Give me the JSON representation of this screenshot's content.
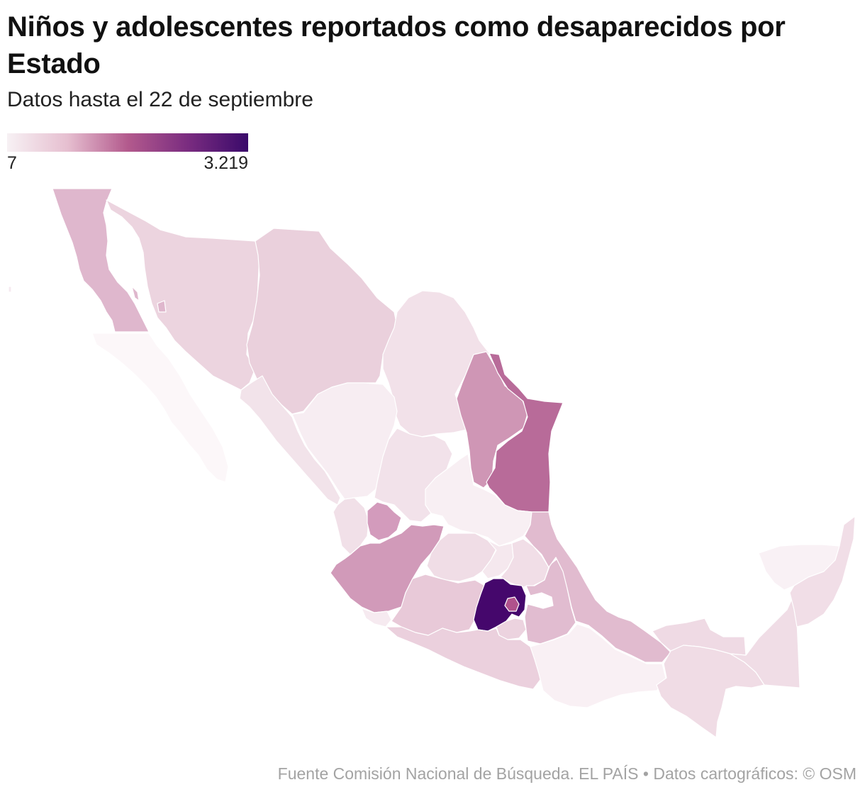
{
  "title": "Niños y adolescentes reportados como desaparecidos por Estado",
  "subtitle": "Datos hasta el 22 de septiembre",
  "legend": {
    "min_label": "7",
    "max_label": "3.219",
    "gradient_colors": [
      "#f7f1f4",
      "#e6bfd0",
      "#b35a8d",
      "#7a2c80",
      "#3a0a6a"
    ]
  },
  "footer": {
    "source": "Fuente Comisión Nacional de Búsqueda. EL PAÍS",
    "separator": "•",
    "credits": "Datos cartográficos: © OSM"
  },
  "map": {
    "states": [
      {
        "id": "baja-california",
        "color": "#dfb7cd"
      },
      {
        "id": "baja-california-sur",
        "color": "#fcf7f9"
      },
      {
        "id": "sonora",
        "color": "#ecd4df"
      },
      {
        "id": "chihuahua",
        "color": "#ead0dc"
      },
      {
        "id": "coahuila",
        "color": "#f2e1e9"
      },
      {
        "id": "nuevo-leon",
        "color": "#cf96b5"
      },
      {
        "id": "tamaulipas",
        "color": "#b86b99"
      },
      {
        "id": "sinaloa",
        "color": "#f2e3ea"
      },
      {
        "id": "durango",
        "color": "#f7edf2"
      },
      {
        "id": "nayarit",
        "color": "#f1e0e8"
      },
      {
        "id": "zacatecas",
        "color": "#f2e2ea"
      },
      {
        "id": "san-luis-potosi",
        "color": "#f8eff3"
      },
      {
        "id": "aguascalientes",
        "color": "#d39bbc"
      },
      {
        "id": "jalisco",
        "color": "#d19ab9"
      },
      {
        "id": "guanajuato",
        "color": "#f0dde6"
      },
      {
        "id": "queretaro",
        "color": "#f5e8ee"
      },
      {
        "id": "hidalgo",
        "color": "#f1dee7"
      },
      {
        "id": "colima",
        "color": "#f6eaf0"
      },
      {
        "id": "michoacan",
        "color": "#e8c9d8"
      },
      {
        "id": "estado-de-mexico",
        "color": "#45076c"
      },
      {
        "id": "ciudad-de-mexico",
        "color": "#b0528c"
      },
      {
        "id": "morelos",
        "color": "#ecd3df"
      },
      {
        "id": "tlaxcala",
        "color": "#ffffff"
      },
      {
        "id": "puebla",
        "color": "#e1bcd0"
      },
      {
        "id": "veracruz",
        "color": "#e1bbcf"
      },
      {
        "id": "guerrero",
        "color": "#ebd0dd"
      },
      {
        "id": "oaxaca",
        "color": "#f9f0f4"
      },
      {
        "id": "tabasco",
        "color": "#efdae4"
      },
      {
        "id": "chiapas",
        "color": "#f0dce5"
      },
      {
        "id": "campeche",
        "color": "#f0dde6"
      },
      {
        "id": "yucatan",
        "color": "#f9f1f5"
      },
      {
        "id": "quintana-roo",
        "color": "#f1dee7"
      }
    ]
  }
}
